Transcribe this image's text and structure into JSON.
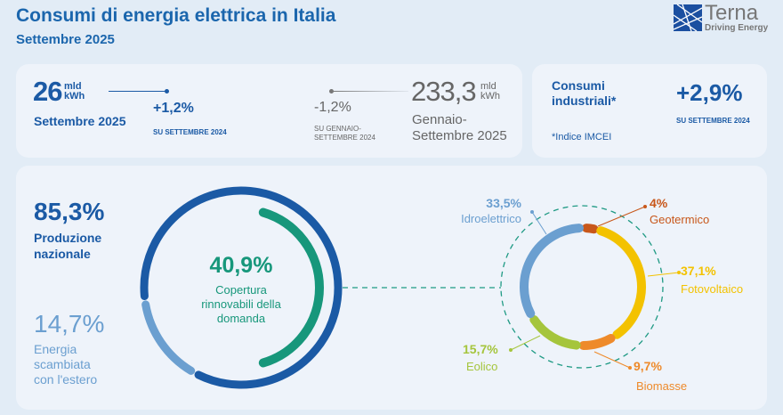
{
  "header": {
    "title": "Consumi di energia elettrica in Italia",
    "subtitle": "Settembre 2025"
  },
  "logo": {
    "name": "Terna",
    "tagline": "Driving Energy",
    "color": "#1b4fa0"
  },
  "monthly": {
    "value": "26",
    "unit_line1": "mld",
    "unit_line2": "kWh",
    "period": "Settembre 2025",
    "change": "+1,2%",
    "change_ref": "SU SETTEMBRE 2024"
  },
  "ytd": {
    "value": "233,3",
    "unit_line1": "mld",
    "unit_line2": "kWh",
    "period_line1": "Gennaio-",
    "period_line2": "Settembre 2025",
    "change": "-1,2%",
    "change_ref_line1": "SU GENNAIO-",
    "change_ref_line2": "SETTEMBRE 2024"
  },
  "industrial": {
    "label_line1": "Consumi",
    "label_line2": "industriali*",
    "change": "+2,9%",
    "change_ref": "SU SETTEMBRE 2024",
    "note": "*Indice IMCEI"
  },
  "chart_data": [
    {
      "type": "pie",
      "variant": "donut",
      "series": [
        {
          "name": "Produzione nazionale",
          "value": 85.3,
          "label": "85,3%",
          "color": "#1b5aa5"
        },
        {
          "name": "Energia scambiata con l'estero",
          "value": 14.7,
          "label": "14,7%",
          "color": "#6b9fd0"
        }
      ],
      "name_lines": {
        "national": [
          "Produzione",
          "nazionale"
        ],
        "exchange": [
          "Energia",
          "scambiata",
          "con l'estero"
        ]
      },
      "inner": {
        "name": "Copertura rinnovabili della domanda",
        "value": 40.9,
        "label": "40,9%",
        "color": "#17977b",
        "lines": [
          "Copertura",
          "rinnovabili della",
          "domanda"
        ]
      }
    },
    {
      "type": "pie",
      "variant": "donut",
      "series": [
        {
          "name": "Geotermico",
          "value": 4,
          "label": "4%",
          "color": "#c8571a"
        },
        {
          "name": "Fotovoltaico",
          "value": 37.1,
          "label": "37,1%",
          "color": "#f3c200"
        },
        {
          "name": "Biomasse",
          "value": 9.7,
          "label": "9,7%",
          "color": "#ee8a2a"
        },
        {
          "name": "Eolico",
          "value": 15.7,
          "label": "15,7%",
          "color": "#a5c53c"
        },
        {
          "name": "Idroelettrico",
          "value": 33.5,
          "label": "33,5%",
          "color": "#6b9fd0"
        }
      ]
    }
  ]
}
